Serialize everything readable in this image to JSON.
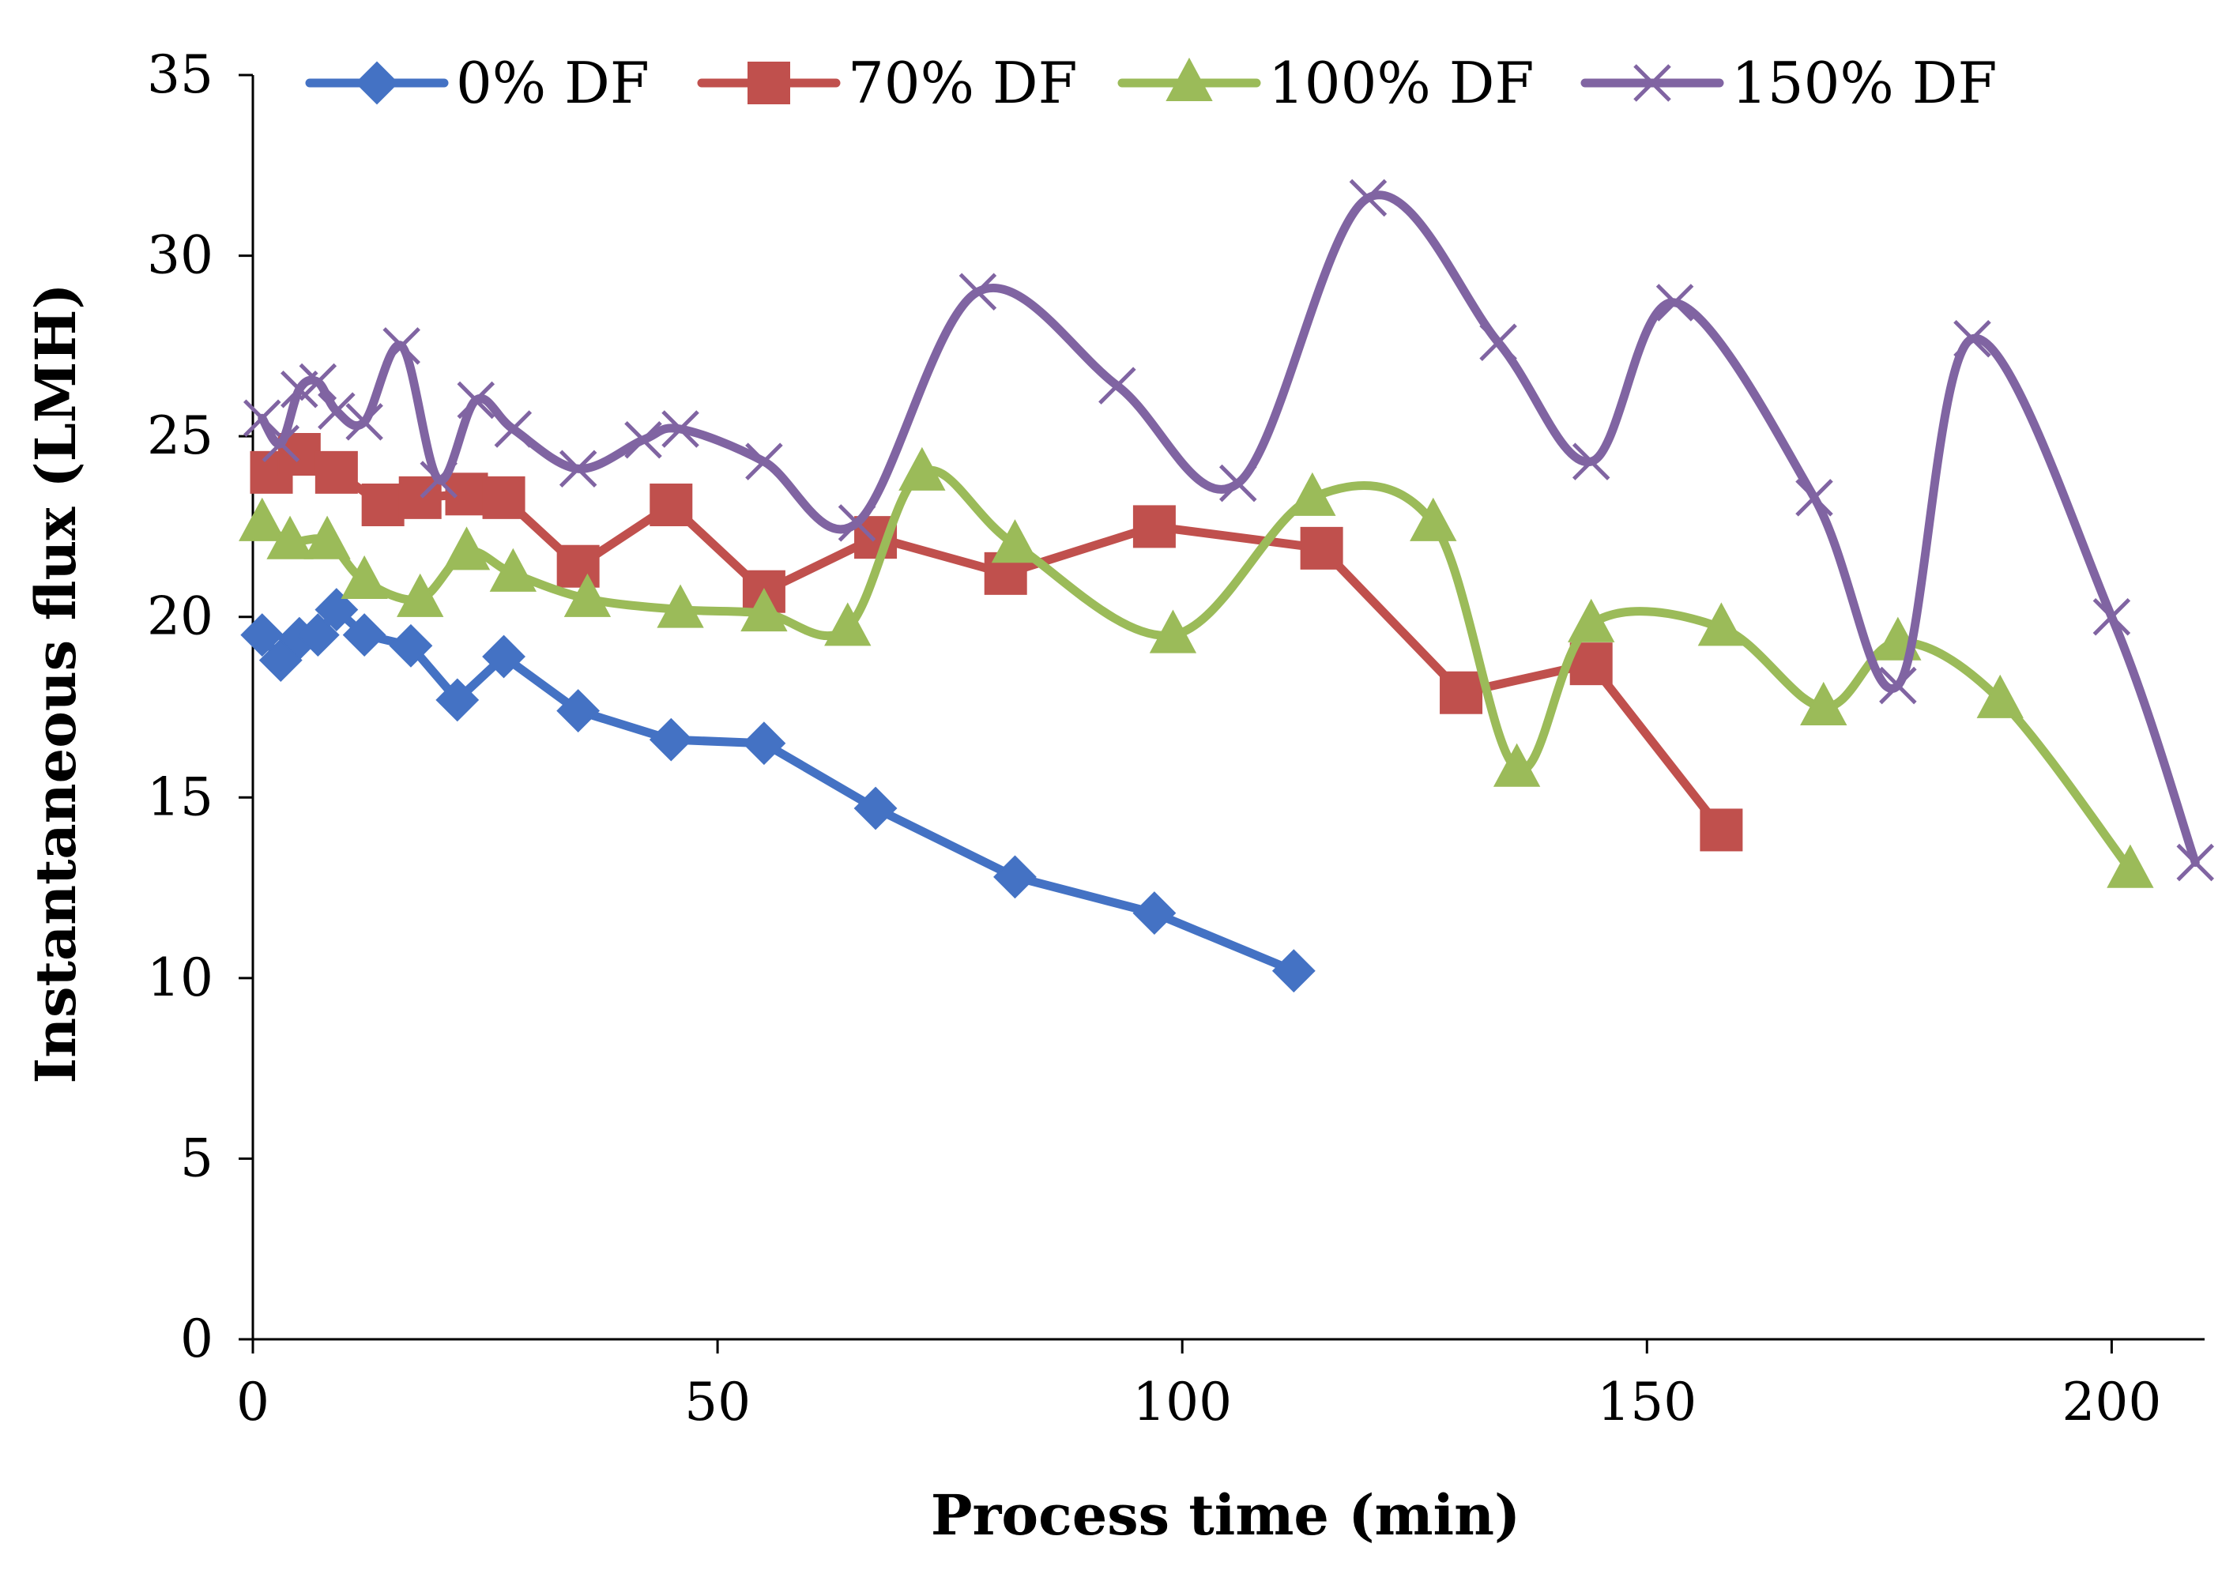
{
  "chart_data": {
    "type": "line",
    "title": "",
    "xlabel": "Process time (min)",
    "ylabel": "Instantaneous flux (LMH)",
    "xlim": [
      0,
      210
    ],
    "ylim": [
      0,
      35
    ],
    "xticks": [
      0,
      50,
      100,
      150,
      200
    ],
    "yticks": [
      0,
      5,
      10,
      15,
      20,
      25,
      30,
      35
    ],
    "xtick_labels": [
      "0",
      "50",
      "100",
      "150",
      "200"
    ],
    "ytick_labels": [
      "0",
      "5",
      "10",
      "15",
      "20",
      "25",
      "30",
      "35"
    ],
    "legend_position": "top",
    "grid": false,
    "series": [
      {
        "name": "0% DF",
        "color": "#4472C4",
        "marker": "diamond",
        "smooth": false,
        "x": [
          1,
          3,
          5,
          7,
          9,
          12,
          17,
          22,
          27,
          35,
          45,
          55,
          67,
          82,
          97,
          112
        ],
        "y": [
          19.5,
          18.8,
          19.4,
          19.5,
          20.2,
          19.5,
          19.2,
          17.7,
          18.9,
          17.4,
          16.6,
          16.5,
          14.7,
          12.8,
          11.8,
          10.2
        ]
      },
      {
        "name": "70% DF",
        "color": "#C0504D",
        "marker": "square",
        "smooth": false,
        "x": [
          2,
          5,
          9,
          14,
          18,
          23,
          27,
          35,
          45,
          55,
          67,
          81,
          97,
          115,
          130,
          144,
          158
        ],
        "y": [
          24.0,
          24.5,
          24.0,
          23.1,
          23.3,
          23.4,
          23.3,
          21.4,
          23.1,
          20.7,
          22.2,
          21.2,
          22.5,
          21.9,
          17.9,
          18.7,
          14.1
        ]
      },
      {
        "name": "100% DF",
        "color": "#9BBB59",
        "marker": "triangle",
        "smooth": true,
        "x": [
          1,
          4,
          8,
          12,
          18,
          23,
          28,
          36,
          46,
          55,
          64,
          72,
          82,
          99,
          114,
          127,
          136,
          144,
          158,
          169,
          177,
          188,
          202
        ],
        "y": [
          22.6,
          22.1,
          22.1,
          21.0,
          20.5,
          21.8,
          21.2,
          20.5,
          20.2,
          20.1,
          19.7,
          24.0,
          22.0,
          19.5,
          23.3,
          22.6,
          15.8,
          19.8,
          19.7,
          17.5,
          19.3,
          17.7,
          13.0
        ]
      },
      {
        "name": "150% DF",
        "color": "#8064A2",
        "marker": "x",
        "smooth": true,
        "x": [
          1,
          3,
          5,
          7,
          9,
          12,
          16,
          20,
          24,
          28,
          35,
          42,
          46,
          55,
          65,
          78,
          93,
          106,
          120,
          134,
          144,
          153,
          168,
          177,
          185,
          200,
          209
        ],
        "y": [
          25.5,
          24.8,
          26.3,
          26.5,
          25.7,
          25.4,
          27.5,
          23.8,
          26.0,
          25.2,
          24.1,
          24.9,
          25.2,
          24.3,
          22.6,
          29.0,
          26.4,
          23.7,
          31.6,
          27.6,
          24.3,
          28.7,
          23.3,
          18.1,
          27.7,
          20.0,
          13.2
        ]
      }
    ]
  }
}
